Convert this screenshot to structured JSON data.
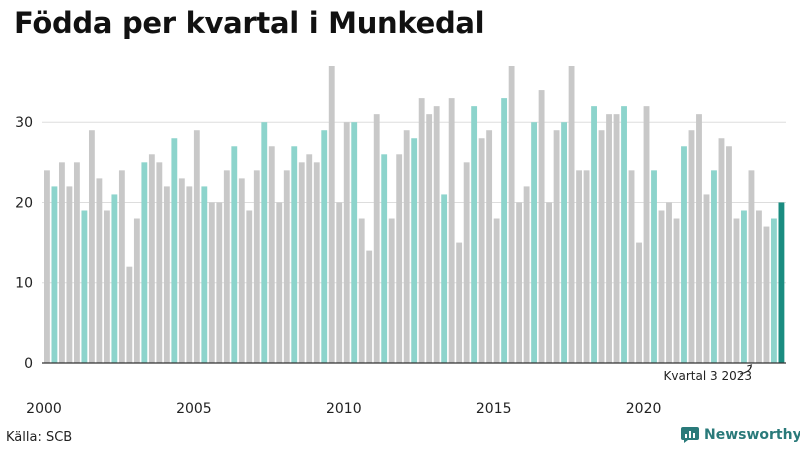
{
  "title": "Födda per kvartal i Munkedal",
  "source": "Källa: SCB",
  "brand": "Newsworthy",
  "colors": {
    "q1": "#c8c8c8",
    "q2": "#8dd4cc",
    "q3": "#c8c8c8",
    "q4": "#c8c8c8",
    "last": "#1a8c80",
    "axis": "#333333",
    "grid": "#dddddd"
  },
  "chart_data": {
    "type": "bar",
    "title": "Födda per kvartal i Munkedal",
    "xlabel": "",
    "ylabel": "",
    "ylim": [
      0,
      37
    ],
    "yticks": [
      0,
      10,
      20,
      30
    ],
    "x_tick_labels": [
      "2000",
      "2005",
      "2010",
      "2015",
      "2020"
    ],
    "grid": true,
    "start": "2000 kvartal 1",
    "values": [
      24,
      22,
      25,
      22,
      25,
      19,
      29,
      23,
      19,
      21,
      24,
      12,
      18,
      25,
      26,
      25,
      22,
      28,
      23,
      22,
      29,
      22,
      20,
      20,
      24,
      27,
      23,
      19,
      24,
      30,
      27,
      20,
      24,
      27,
      25,
      26,
      25,
      29,
      37,
      20,
      30,
      30,
      18,
      14,
      31,
      26,
      18,
      26,
      29,
      28,
      33,
      31,
      32,
      21,
      33,
      15,
      25,
      32,
      28,
      29,
      18,
      33,
      37,
      20,
      22,
      30,
      34,
      20,
      29,
      30,
      37,
      24,
      24,
      32,
      29,
      31,
      31,
      32,
      24,
      15,
      32,
      24,
      19,
      20,
      18,
      27,
      29,
      31,
      21,
      24,
      28,
      27,
      18,
      19,
      24,
      19,
      17,
      18,
      20
    ],
    "annotation": "Kvartal 3 2023"
  }
}
